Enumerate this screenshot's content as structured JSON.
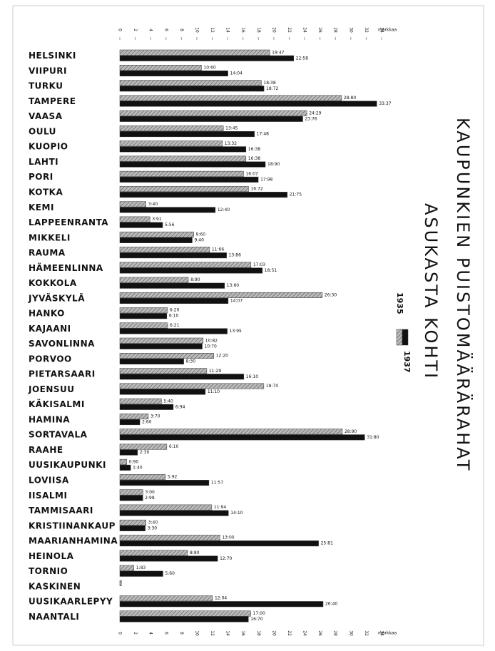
{
  "chart_data": {
    "type": "bar",
    "orientation": "horizontal",
    "title": "KAUPUNKIEN PUISTOMÄÄRÄRAHAT",
    "subtitle": "ASUKASTA KOHTI",
    "x_label": "markkaa",
    "categories": [
      "HELSINKI",
      "VIIPURI",
      "TURKU",
      "TAMPERE",
      "VAASA",
      "OULU",
      "KUOPIO",
      "LAHTI",
      "PORI",
      "KOTKA",
      "KEMI",
      "LAPPEENRANTA",
      "MIKKELI",
      "RAUMA",
      "HÄMEENLINNA",
      "KOKKOLA",
      "JYVÄSKYLÄ",
      "HANKO",
      "KAJAANI",
      "SAVONLINNA",
      "PORVOO",
      "PIETARSAARI",
      "JOENSUU",
      "KÄKISALMI",
      "HAMINA",
      "SORTAVALA",
      "RAAHE",
      "UUSIKAUPUNKI",
      "LOVIISA",
      "IISALMI",
      "TAMMISAARI",
      "KRISTIINANKAUP",
      "MAARIANHAMINA",
      "HEINOLA",
      "TORNIO",
      "KASKINEN",
      "UUSIKAARLEPYY",
      "NAANTALI"
    ],
    "series": [
      {
        "name": "1935",
        "color": "#9a9a9a",
        "pattern": "hatch",
        "values": [
          19.47,
          10.6,
          18.38,
          28.8,
          24.29,
          13.45,
          13.32,
          16.38,
          16.07,
          16.72,
          3.4,
          3.91,
          9.6,
          11.66,
          17.03,
          8.9,
          26.3,
          6.2,
          6.21,
          10.82,
          12.2,
          11.29,
          18.7,
          5.4,
          3.7,
          28.9,
          6.1,
          0.9,
          5.92,
          3.0,
          11.94,
          3.4,
          13.0,
          8.8,
          1.83,
          0.2,
          12.04,
          17.0
        ],
        "value_labels": [
          "19:47",
          "10:60",
          "18:38",
          "28:80",
          "24:29",
          "13:45",
          "13:32",
          "16:38",
          "16:07",
          "16:72",
          "3:40",
          "3:91",
          "9:60",
          "11:66",
          "17:03",
          "8:90",
          "26:30",
          "6:20",
          "6:21",
          "10:82",
          "12:20",
          "11:29",
          "18:70",
          "5:40",
          "3:70",
          "28:90",
          "6:10",
          "0:90",
          "5:92",
          "3:00",
          "11:94",
          "3:40",
          "13:00",
          "8:80",
          "1:83",
          null,
          "12:04",
          "17:00"
        ]
      },
      {
        "name": "1937",
        "color": "#111111",
        "values": [
          22.58,
          14.04,
          18.72,
          33.37,
          23.76,
          17.48,
          16.38,
          18.9,
          17.98,
          21.75,
          12.4,
          5.56,
          9.4,
          13.86,
          18.51,
          13.6,
          14.07,
          6.1,
          13.95,
          10.7,
          8.3,
          16.1,
          11.1,
          6.94,
          2.6,
          31.8,
          2.3,
          1.4,
          11.57,
          2.98,
          14.1,
          3.3,
          25.81,
          12.7,
          5.6,
          null,
          26.4,
          16.7
        ],
        "value_labels": [
          "22:58",
          "14:04",
          "18:72",
          "33:37",
          "23:76",
          "17:48",
          "16:38",
          "18:90",
          "17:98",
          "21:75",
          "12:40",
          "5:56",
          "9:40",
          "13:86",
          "18:51",
          "13:60",
          "14:07",
          "6:10",
          "13:95",
          "10:70",
          "8:30",
          "16:10",
          "11:10",
          "6:94",
          "2:60",
          "31:80",
          "2:30",
          "1:40",
          "11:57",
          "2:98",
          "14:10",
          "3:30",
          "25:81",
          "12:70",
          "5:60",
          null,
          "26:40",
          "16:70"
        ]
      }
    ],
    "xlim": [
      0,
      34
    ],
    "xticks": [
      0,
      2,
      4,
      6,
      8,
      10,
      12,
      14,
      16,
      18,
      20,
      22,
      24,
      26,
      28,
      30,
      32,
      34
    ]
  }
}
